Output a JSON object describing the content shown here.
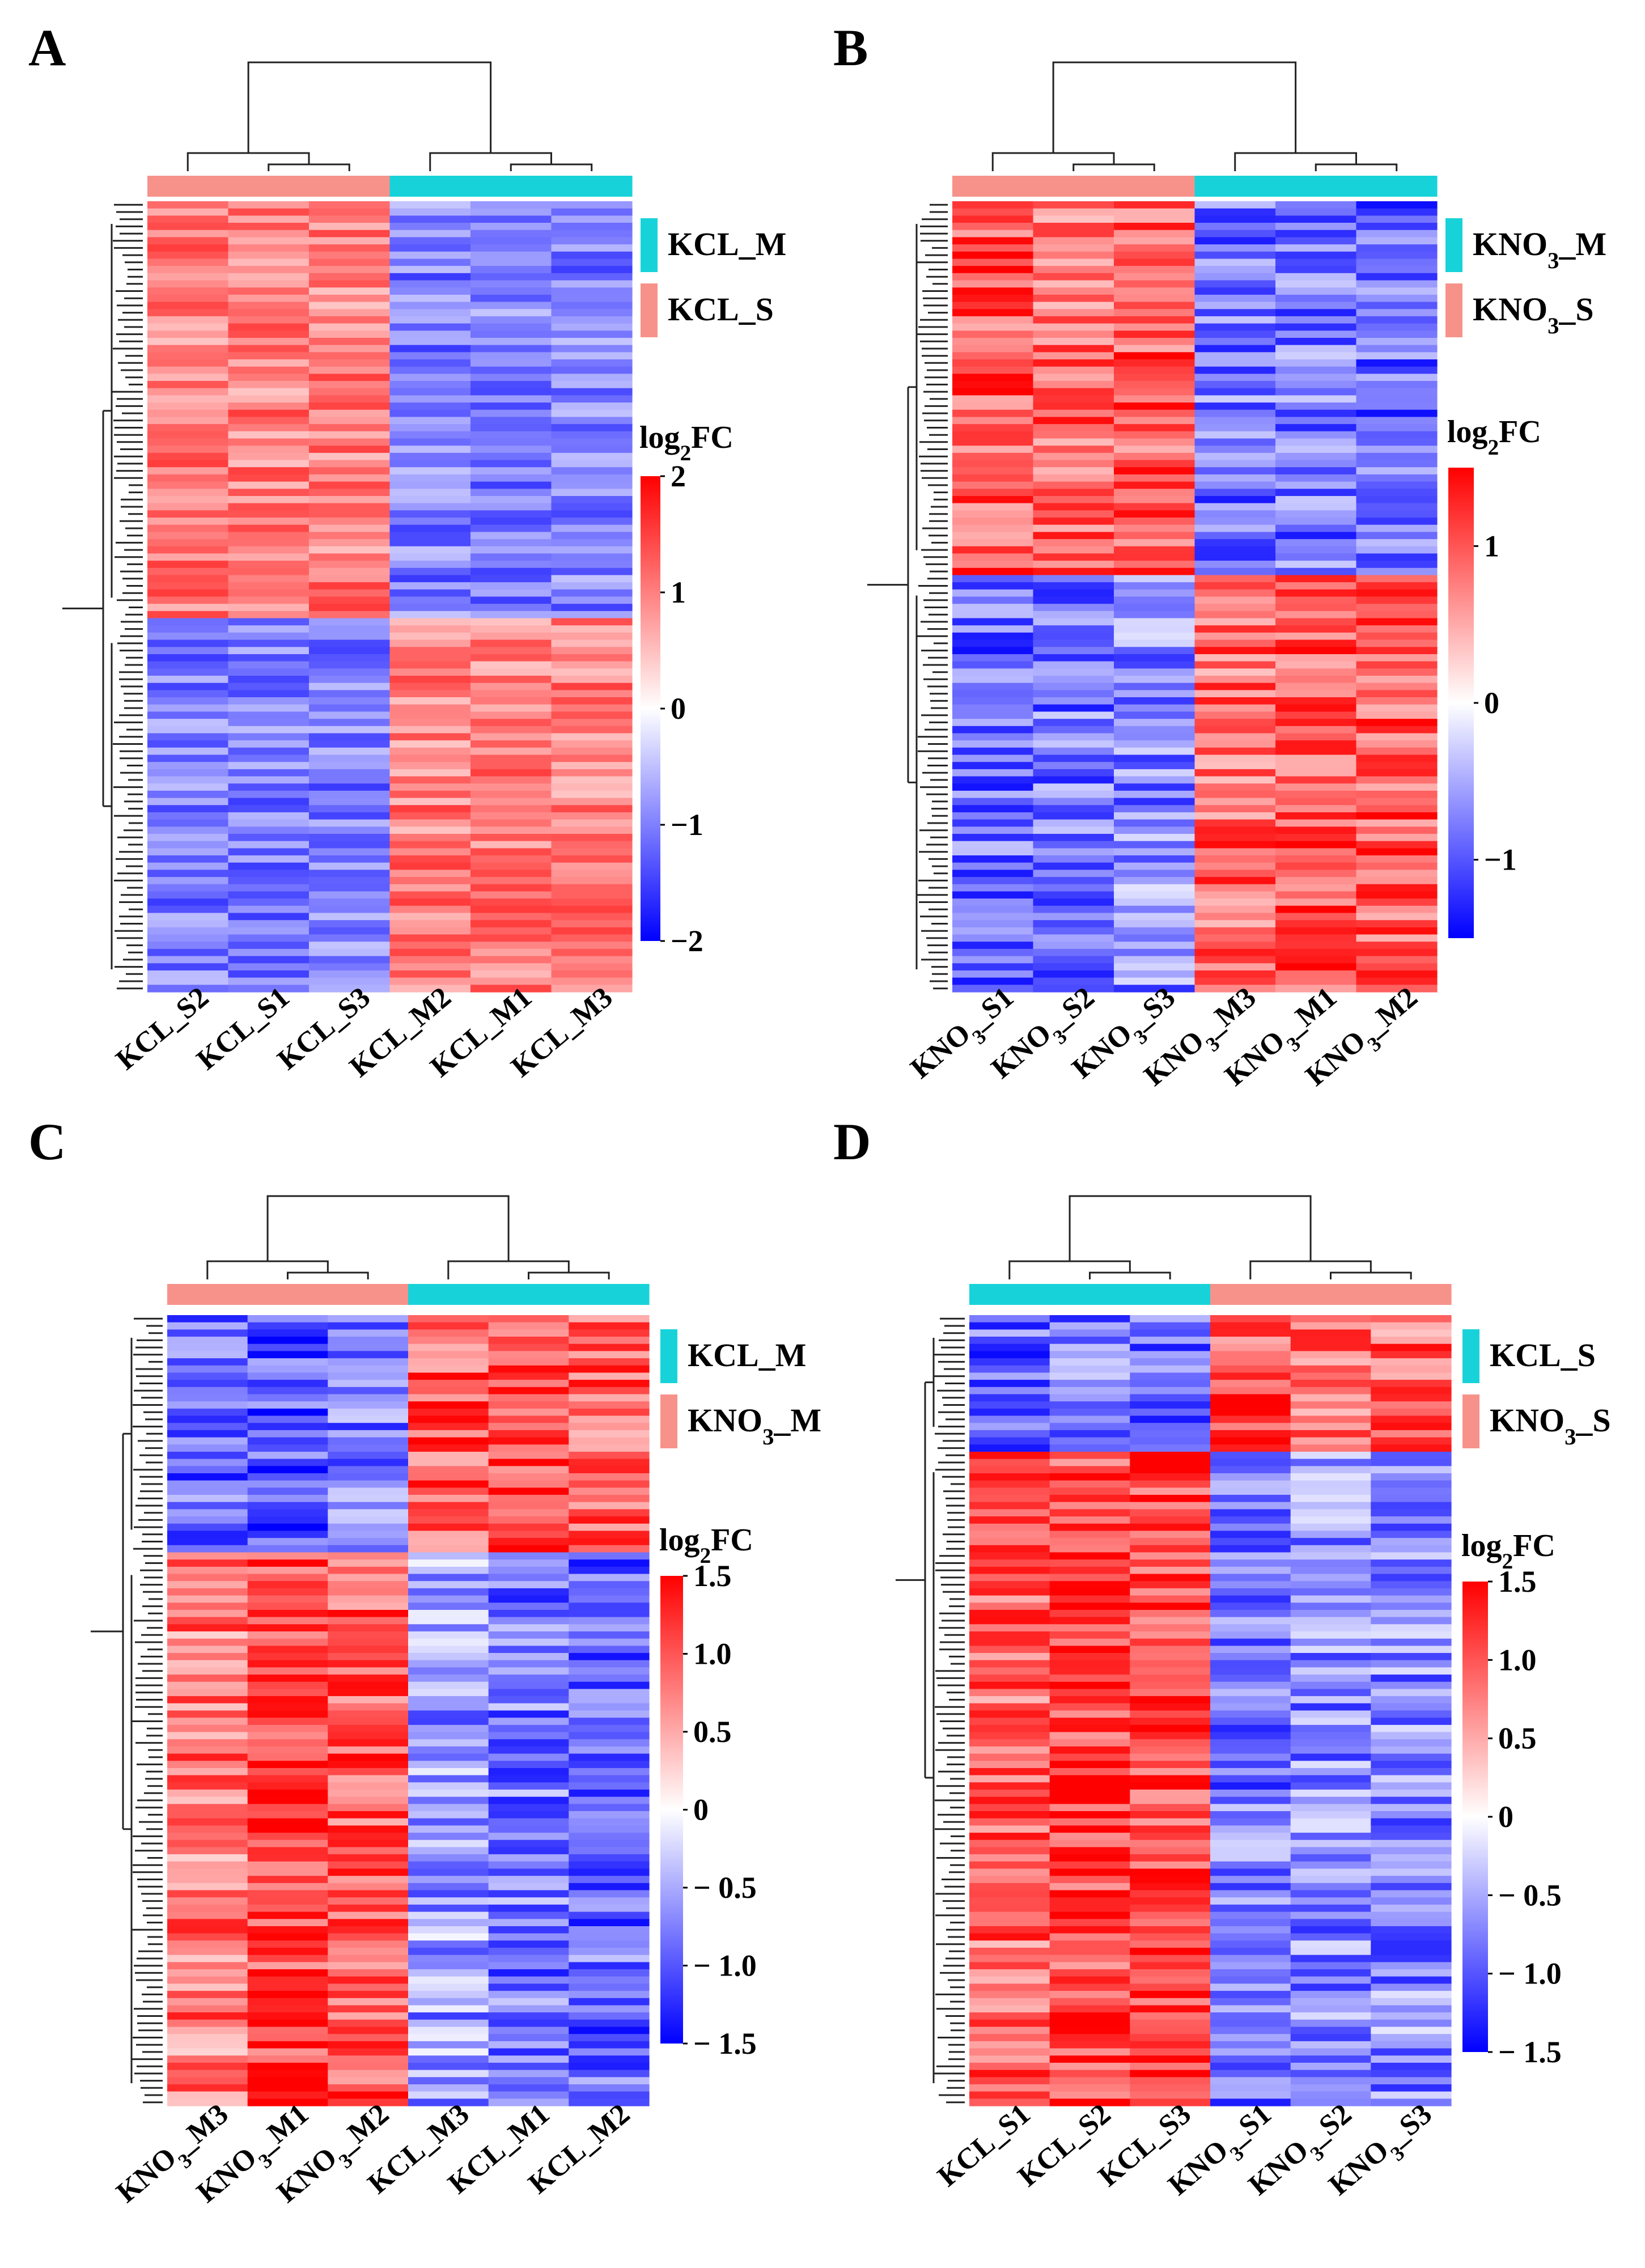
{
  "figure": {
    "panels": [
      "A",
      "B",
      "C",
      "D"
    ]
  },
  "chart_data": [
    {
      "panel": "A",
      "type": "heatmap",
      "title": "",
      "columns": [
        "KCL_S2",
        "KCL_S1",
        "KCL_S3",
        "KCL_M2",
        "KCL_M1",
        "KCL_M3"
      ],
      "column_groups": [
        "KCL_S",
        "KCL_S",
        "KCL_S",
        "KCL_M",
        "KCL_M",
        "KCL_M"
      ],
      "legend": [
        {
          "label": "KCL_M",
          "color": "#17d3d9"
        },
        {
          "label": "KCL_S",
          "color": "#f7928a"
        }
      ],
      "colorbar": {
        "title": "log2FC",
        "min": -2,
        "max": 2,
        "ticks": [
          "2",
          "1",
          "0",
          "−1",
          "−2"
        ],
        "tick_values": [
          2,
          1,
          0,
          -1,
          -2
        ]
      },
      "row_blocks": [
        {
          "fraction": 0.53,
          "values": [
            1.0,
            1.0,
            1.0,
            -1.0,
            -1.0,
            -1.0
          ]
        },
        {
          "fraction": 0.47,
          "values": [
            -1.0,
            -1.0,
            -1.0,
            1.0,
            1.0,
            1.0
          ]
        }
      ]
    },
    {
      "panel": "B",
      "type": "heatmap",
      "title": "",
      "columns": [
        "KNO3_S1",
        "KNO3_S2",
        "KNO3_S3",
        "KNO3_M3",
        "KNO3_M1",
        "KNO3_M2"
      ],
      "column_groups": [
        "KNO3_S",
        "KNO3_S",
        "KNO3_S",
        "KNO3_M",
        "KNO3_M",
        "KNO3_M"
      ],
      "legend": [
        {
          "label": "KNO3_M",
          "color": "#17d3d9"
        },
        {
          "label": "KNO3_S",
          "color": "#f7928a"
        }
      ],
      "colorbar": {
        "title": "log2FC",
        "min": -1.5,
        "max": 1.5,
        "ticks": [
          "1",
          "0",
          "−1"
        ],
        "tick_values": [
          1,
          0,
          -1
        ]
      },
      "row_blocks": [
        {
          "fraction": 0.47,
          "values": [
            1.0,
            0.9,
            1.0,
            -0.8,
            -0.8,
            -0.9
          ]
        },
        {
          "fraction": 0.53,
          "values": [
            -0.9,
            -0.8,
            -0.7,
            0.9,
            1.0,
            1.0
          ]
        }
      ]
    },
    {
      "panel": "C",
      "type": "heatmap",
      "title": "",
      "columns": [
        "KNO3_M3",
        "KNO3_M1",
        "KNO3_M2",
        "KCL_M3",
        "KCL_M1",
        "KCL_M2"
      ],
      "column_groups": [
        "KNO3_M",
        "KNO3_M",
        "KNO3_M",
        "KCL_M",
        "KCL_M",
        "KCL_M"
      ],
      "legend": [
        {
          "label": "KCL_M",
          "color": "#17d3d9"
        },
        {
          "label": "KNO3_M",
          "color": "#f7928a"
        }
      ],
      "colorbar": {
        "title": "log2FC",
        "min": -1.5,
        "max": 1.5,
        "ticks": [
          "1.5",
          "1.0",
          "0.5",
          "0",
          "− 0.5",
          "− 1.0",
          "− 1.5"
        ],
        "tick_values": [
          1.5,
          1.0,
          0.5,
          0,
          -0.5,
          -1.0,
          -1.5
        ]
      },
      "row_blocks": [
        {
          "fraction": 0.3,
          "values": [
            -0.9,
            -1.0,
            -0.8,
            1.0,
            1.1,
            0.9
          ]
        },
        {
          "fraction": 0.7,
          "values": [
            0.8,
            1.1,
            1.0,
            -0.6,
            -0.8,
            -0.9
          ]
        }
      ]
    },
    {
      "panel": "D",
      "type": "heatmap",
      "title": "",
      "columns": [
        "KCL_S1",
        "KCL_S2",
        "KCL_S3",
        "KNO3_S1",
        "KNO3_S2",
        "KNO3_S3"
      ],
      "column_groups": [
        "KCL_S",
        "KCL_S",
        "KCL_S",
        "KNO3_S",
        "KNO3_S",
        "KNO3_S"
      ],
      "legend": [
        {
          "label": "KCL_S",
          "color": "#17d3d9"
        },
        {
          "label": "KNO3_S",
          "color": "#f7928a"
        }
      ],
      "colorbar": {
        "title": "log2FC",
        "min": -1.5,
        "max": 1.5,
        "ticks": [
          "1.5",
          "1.0",
          "0.5",
          "0",
          "− 0.5",
          "− 1.0",
          "− 1.5"
        ],
        "tick_values": [
          1.5,
          1.0,
          0.5,
          0,
          -0.5,
          -1.0,
          -1.5
        ]
      },
      "row_blocks": [
        {
          "fraction": 0.17,
          "values": [
            -0.9,
            -0.8,
            -0.9,
            1.0,
            0.8,
            0.9
          ]
        },
        {
          "fraction": 0.83,
          "values": [
            0.9,
            1.1,
            1.1,
            -0.8,
            -0.7,
            -0.7
          ]
        }
      ]
    }
  ]
}
